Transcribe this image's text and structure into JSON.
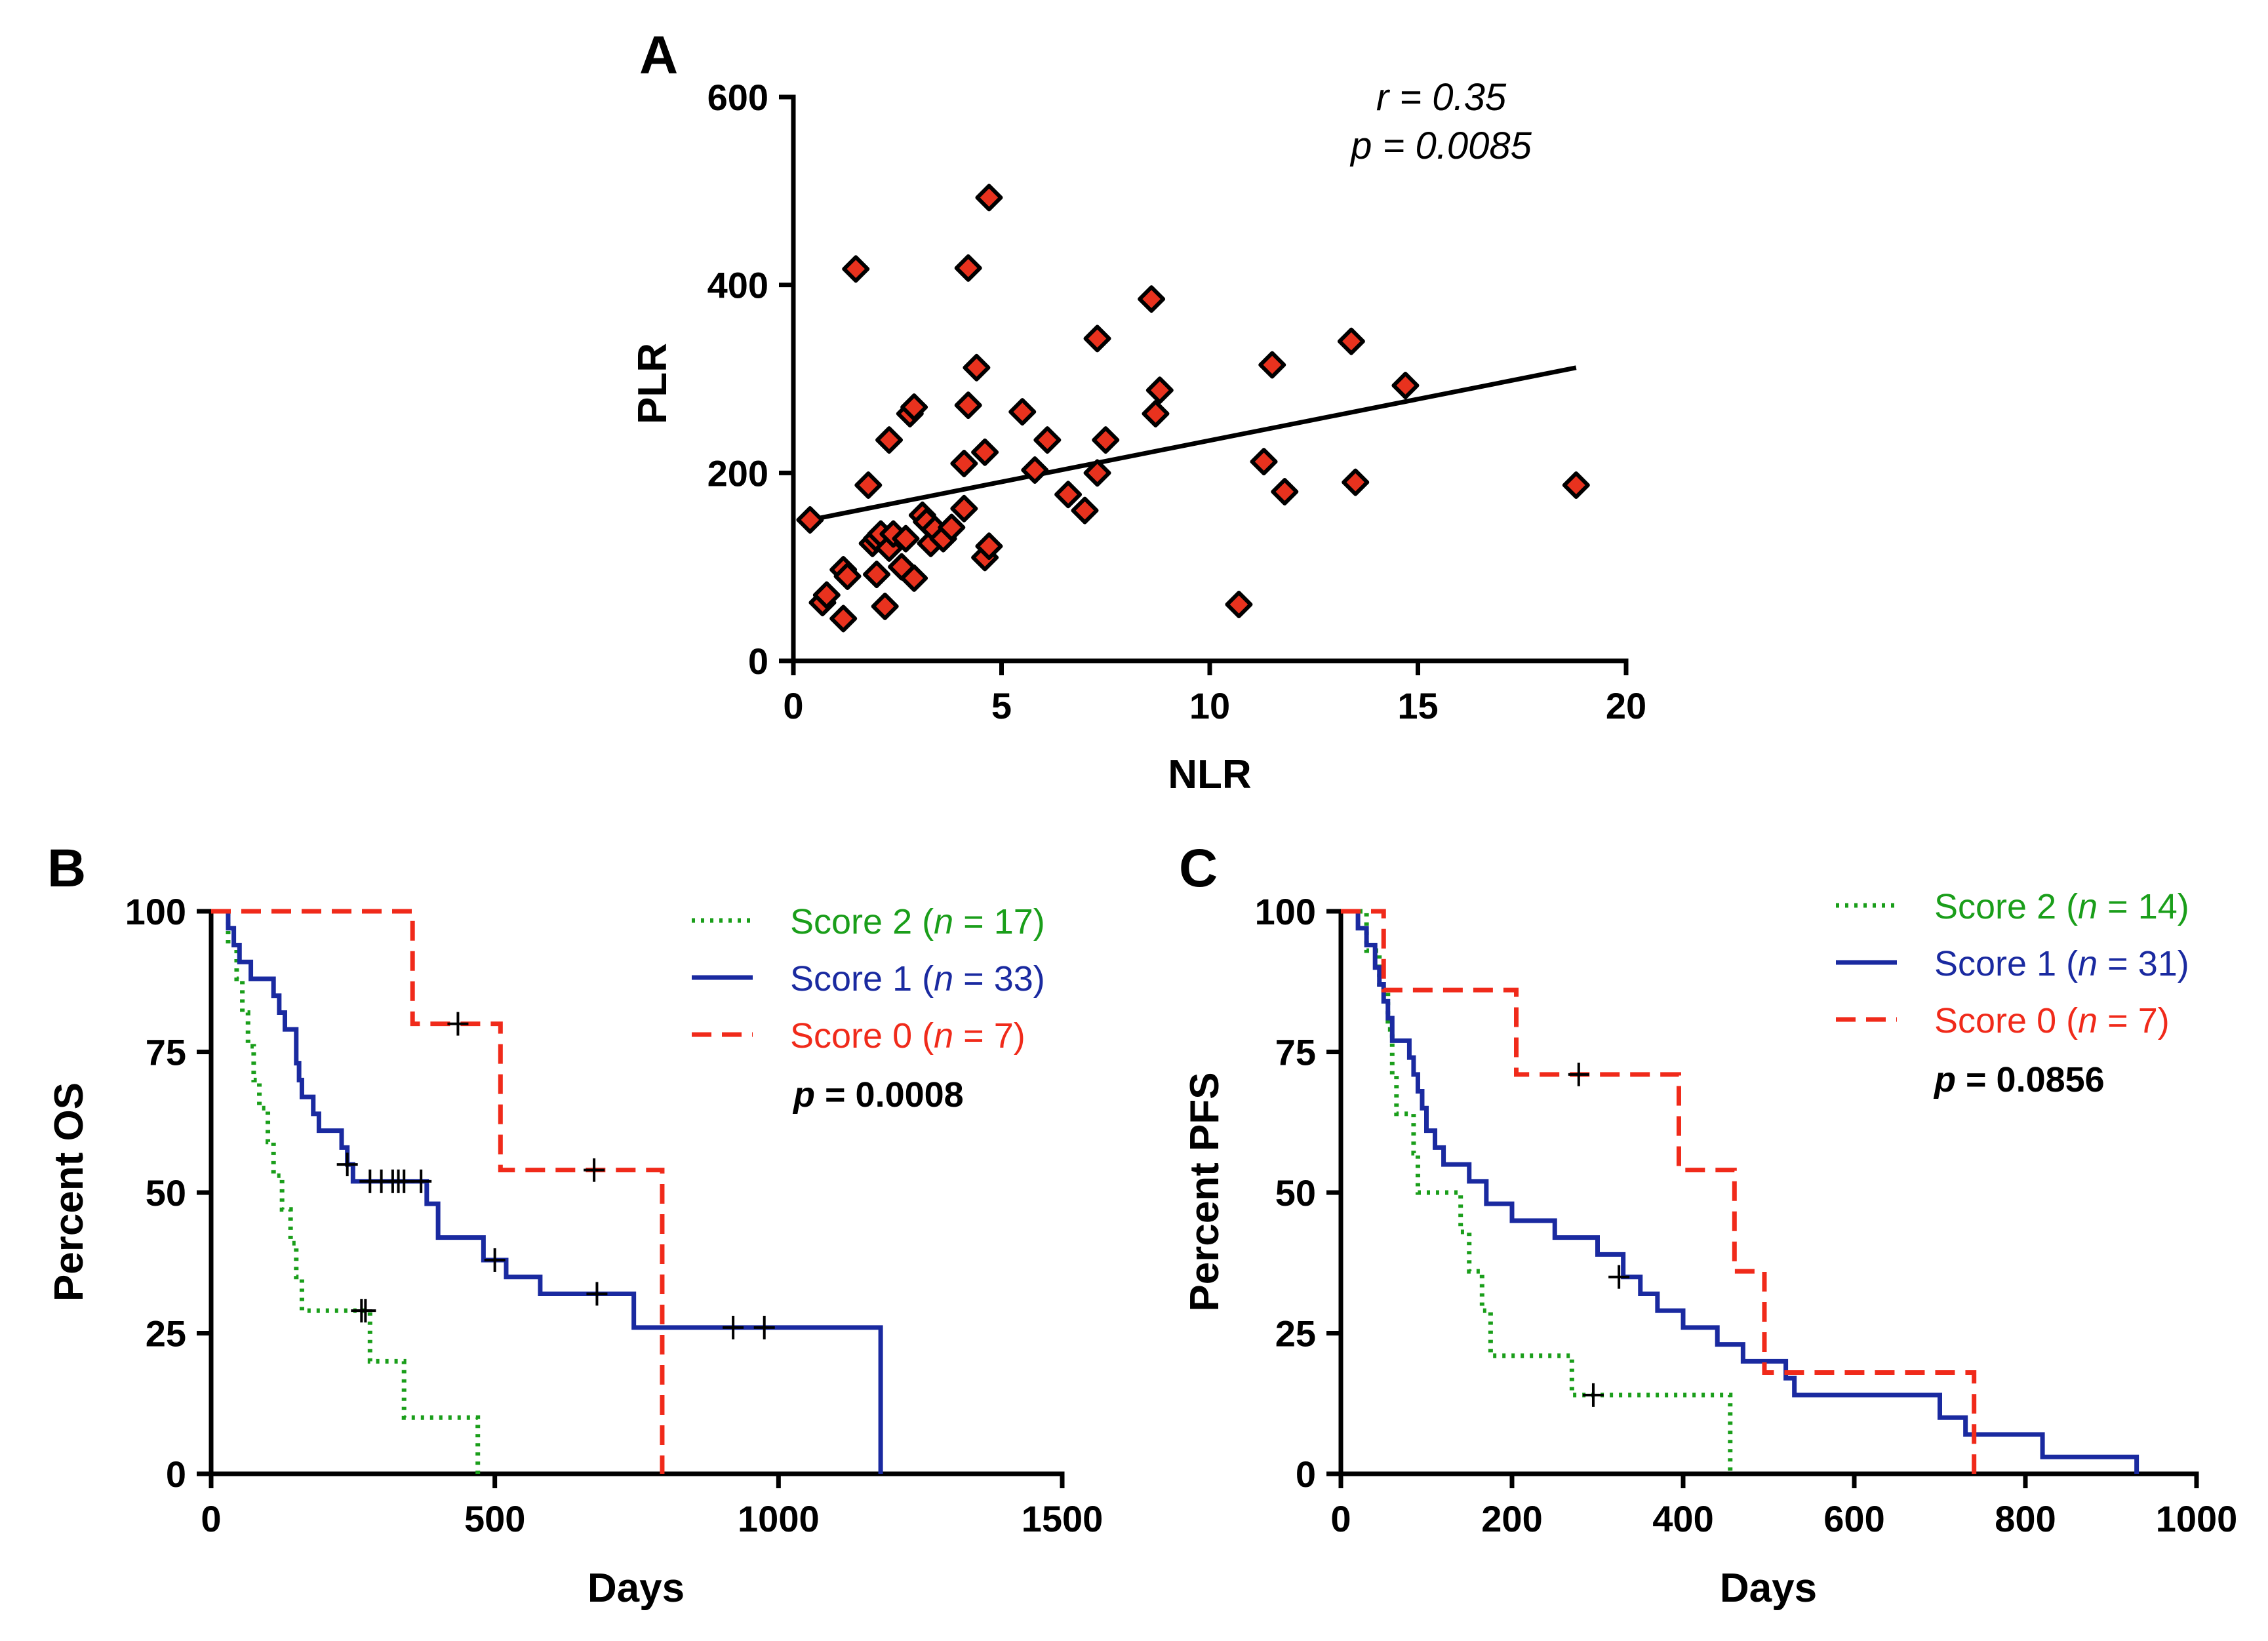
{
  "chart_data": [
    {
      "panel": "A",
      "type": "scatter",
      "xlabel": "NLR",
      "ylabel": "PLR",
      "xlim": [
        0,
        20
      ],
      "ylim": [
        0,
        600
      ],
      "xticks": [
        "0",
        "5",
        "10",
        "15",
        "20"
      ],
      "yticks": [
        "0",
        "200",
        "400",
        "600"
      ],
      "annotations": [
        "r = 0.35",
        "p = 0.0085"
      ],
      "fit_line": {
        "x": [
          0.4,
          18.8
        ],
        "y": [
          150,
          312
        ]
      },
      "points": [
        [
          0.4,
          150
        ],
        [
          0.7,
          62
        ],
        [
          0.8,
          70
        ],
        [
          1.2,
          45
        ],
        [
          1.2,
          97
        ],
        [
          1.3,
          90
        ],
        [
          1.5,
          417
        ],
        [
          1.8,
          187
        ],
        [
          1.9,
          125
        ],
        [
          2.0,
          92
        ],
        [
          2.0,
          130
        ],
        [
          2.1,
          135
        ],
        [
          2.2,
          58
        ],
        [
          2.3,
          120
        ],
        [
          2.3,
          235
        ],
        [
          2.4,
          135
        ],
        [
          2.6,
          100
        ],
        [
          2.7,
          130
        ],
        [
          2.8,
          263
        ],
        [
          2.9,
          88
        ],
        [
          2.9,
          270
        ],
        [
          3.1,
          155
        ],
        [
          3.2,
          148
        ],
        [
          3.3,
          125
        ],
        [
          3.4,
          140
        ],
        [
          3.6,
          130
        ],
        [
          3.8,
          142
        ],
        [
          4.1,
          162
        ],
        [
          4.1,
          210
        ],
        [
          4.2,
          272
        ],
        [
          4.2,
          418
        ],
        [
          4.4,
          312
        ],
        [
          4.6,
          110
        ],
        [
          4.6,
          222
        ],
        [
          4.7,
          122
        ],
        [
          4.7,
          493
        ],
        [
          5.5,
          265
        ],
        [
          5.8,
          203
        ],
        [
          6.1,
          235
        ],
        [
          6.6,
          177
        ],
        [
          7.0,
          160
        ],
        [
          7.3,
          200
        ],
        [
          7.3,
          343
        ],
        [
          7.5,
          235
        ],
        [
          8.6,
          385
        ],
        [
          8.7,
          263
        ],
        [
          8.8,
          288
        ],
        [
          10.7,
          60
        ],
        [
          11.3,
          212
        ],
        [
          11.5,
          315
        ],
        [
          11.8,
          180
        ],
        [
          13.4,
          340
        ],
        [
          13.5,
          190
        ],
        [
          14.7,
          293
        ],
        [
          18.8,
          187
        ]
      ]
    },
    {
      "panel": "B",
      "type": "line",
      "subtype": "kaplan-meier",
      "xlabel": "Days",
      "ylabel": "Percent OS",
      "xlim": [
        0,
        1500
      ],
      "ylim": [
        0,
        100
      ],
      "xticks": [
        "0",
        "500",
        "1000",
        "1500"
      ],
      "yticks": [
        "0",
        "25",
        "50",
        "75",
        "100"
      ],
      "p_label": "p",
      "p_value": "= 0.0008",
      "series": [
        {
          "name": "Score 2",
          "n_prefix": "(",
          "n_symbol": "n",
          "n_suffix": " = 17)",
          "color": "#1a9e1a",
          "style": "dotted",
          "steps": [
            [
              0,
              100
            ],
            [
              30,
              94
            ],
            [
              45,
              88
            ],
            [
              55,
              82
            ],
            [
              65,
              76
            ],
            [
              75,
              70
            ],
            [
              85,
              65
            ],
            [
              100,
              59
            ],
            [
              110,
              53
            ],
            [
              125,
              47
            ],
            [
              140,
              41
            ],
            [
              150,
              35
            ],
            [
              160,
              29
            ],
            [
              265,
              29
            ],
            [
              280,
              20
            ],
            [
              340,
              10
            ],
            [
              470,
              10
            ],
            [
              470,
              0
            ]
          ],
          "censors": [
            [
              265,
              29
            ],
            [
              272,
              29
            ]
          ]
        },
        {
          "name": "Score 1",
          "n_prefix": "(",
          "n_symbol": "n",
          "n_suffix": " = 33)",
          "color": "#1a2aa0",
          "style": "solid",
          "steps": [
            [
              0,
              100
            ],
            [
              30,
              97
            ],
            [
              40,
              94
            ],
            [
              50,
              91
            ],
            [
              70,
              88
            ],
            [
              110,
              85
            ],
            [
              120,
              82
            ],
            [
              130,
              79
            ],
            [
              150,
              73
            ],
            [
              155,
              70
            ],
            [
              160,
              67
            ],
            [
              180,
              64
            ],
            [
              190,
              61
            ],
            [
              230,
              58
            ],
            [
              240,
              55
            ],
            [
              250,
              52
            ],
            [
              370,
              52
            ],
            [
              380,
              48
            ],
            [
              400,
              42
            ],
            [
              470,
              42
            ],
            [
              480,
              38
            ],
            [
              520,
              35
            ],
            [
              580,
              32
            ],
            [
              740,
              32
            ],
            [
              745,
              26
            ],
            [
              1180,
              26
            ],
            [
              1180,
              0
            ]
          ],
          "censors": [
            [
              240,
              55
            ],
            [
              280,
              52
            ],
            [
              300,
              52
            ],
            [
              320,
              52
            ],
            [
              330,
              52
            ],
            [
              340,
              52
            ],
            [
              370,
              52
            ],
            [
              500,
              38
            ],
            [
              680,
              32
            ],
            [
              920,
              26
            ],
            [
              975,
              26
            ]
          ]
        },
        {
          "name": "Score 0",
          "n_prefix": "(",
          "n_symbol": "n",
          "n_suffix": " = 7)",
          "color": "#f02a1a",
          "style": "dashed",
          "steps": [
            [
              0,
              100
            ],
            [
              355,
              100
            ],
            [
              355,
              80
            ],
            [
              510,
              80
            ],
            [
              510,
              54
            ],
            [
              795,
              54
            ],
            [
              795,
              0
            ]
          ],
          "censors": [
            [
              435,
              80
            ],
            [
              675,
              54
            ]
          ]
        }
      ]
    },
    {
      "panel": "C",
      "type": "line",
      "subtype": "kaplan-meier",
      "xlabel": "Days",
      "ylabel": "Percent PFS",
      "xlim": [
        0,
        1000
      ],
      "ylim": [
        0,
        100
      ],
      "xticks": [
        "0",
        "200",
        "400",
        "600",
        "800",
        "1000"
      ],
      "yticks": [
        "0",
        "25",
        "50",
        "75",
        "100"
      ],
      "p_label": "p",
      "p_value": "= 0.0856",
      "series": [
        {
          "name": "Score 2",
          "n_prefix": "(",
          "n_symbol": "n",
          "n_suffix": " = 14)",
          "color": "#1a9e1a",
          "style": "dotted",
          "steps": [
            [
              0,
              100
            ],
            [
              30,
              93
            ],
            [
              45,
              86
            ],
            [
              55,
              79
            ],
            [
              60,
              71
            ],
            [
              65,
              64
            ],
            [
              85,
              57
            ],
            [
              90,
              50
            ],
            [
              140,
              43
            ],
            [
              150,
              36
            ],
            [
              165,
              29
            ],
            [
              175,
              21
            ],
            [
              265,
              21
            ],
            [
              270,
              14
            ],
            [
              455,
              14
            ],
            [
              455,
              0
            ]
          ],
          "censors": [
            [
              295,
              14
            ]
          ]
        },
        {
          "name": "Score 1",
          "n_prefix": "(",
          "n_symbol": "n",
          "n_suffix": " = 31)",
          "color": "#1a2aa0",
          "style": "solid",
          "steps": [
            [
              0,
              100
            ],
            [
              20,
              97
            ],
            [
              30,
              94
            ],
            [
              40,
              90
            ],
            [
              45,
              87
            ],
            [
              50,
              84
            ],
            [
              55,
              81
            ],
            [
              60,
              77
            ],
            [
              80,
              74
            ],
            [
              85,
              71
            ],
            [
              90,
              68
            ],
            [
              95,
              65
            ],
            [
              100,
              61
            ],
            [
              110,
              58
            ],
            [
              120,
              55
            ],
            [
              150,
              52
            ],
            [
              170,
              48
            ],
            [
              200,
              45
            ],
            [
              250,
              42
            ],
            [
              300,
              39
            ],
            [
              330,
              35
            ],
            [
              350,
              32
            ],
            [
              370,
              29
            ],
            [
              400,
              26
            ],
            [
              440,
              23
            ],
            [
              470,
              20
            ],
            [
              520,
              17
            ],
            [
              530,
              14
            ],
            [
              690,
              14
            ],
            [
              700,
              10
            ],
            [
              730,
              7
            ],
            [
              820,
              3
            ],
            [
              930,
              3
            ],
            [
              930,
              0
            ]
          ],
          "censors": [
            [
              325,
              35
            ]
          ]
        },
        {
          "name": "Score 0",
          "n_prefix": "(",
          "n_symbol": "n",
          "n_suffix": " = 7)",
          "color": "#f02a1a",
          "style": "dashed",
          "steps": [
            [
              0,
              100
            ],
            [
              50,
              100
            ],
            [
              50,
              86
            ],
            [
              205,
              86
            ],
            [
              205,
              71
            ],
            [
              395,
              71
            ],
            [
              395,
              54
            ],
            [
              460,
              54
            ],
            [
              460,
              36
            ],
            [
              495,
              36
            ],
            [
              495,
              18
            ],
            [
              740,
              18
            ],
            [
              740,
              0
            ]
          ],
          "censors": [
            [
              278,
              71
            ]
          ]
        }
      ]
    }
  ]
}
